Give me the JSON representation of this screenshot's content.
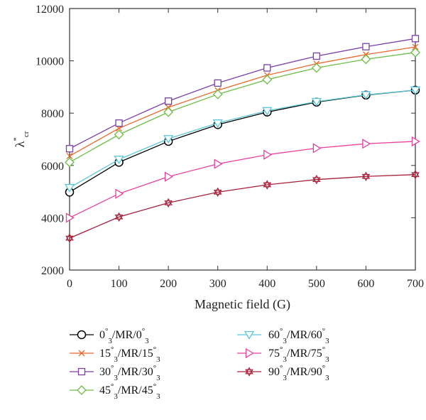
{
  "chart_data": {
    "type": "line",
    "xlabel": "Magnetic field (G)",
    "ylabel": "λ*cr",
    "ylabel_parts": {
      "base": "λ",
      "sup": "*",
      "sub": "cr"
    },
    "xlim": [
      0,
      700
    ],
    "ylim": [
      2000,
      12000
    ],
    "x_ticks": [
      0,
      100,
      200,
      300,
      400,
      500,
      600,
      700
    ],
    "y_ticks": [
      2000,
      4000,
      6000,
      8000,
      10000,
      12000
    ],
    "grid": false,
    "legend_placement": "bottom",
    "x": [
      0,
      100,
      200,
      300,
      400,
      500,
      600,
      700
    ],
    "series": [
      {
        "name": "0°3/MR/0°3",
        "label": {
          "a": "0",
          "b": "/MR/0"
        },
        "marker": "circle",
        "color": "#000000",
        "values": [
          4980,
          6120,
          6920,
          7560,
          8040,
          8420,
          8690,
          8880
        ]
      },
      {
        "name": "15°3/MR/15°3",
        "label": {
          "a": "15",
          "b": "/MR/15"
        },
        "marker": "x",
        "color": "#e8672a",
        "values": [
          6360,
          7420,
          8220,
          8870,
          9450,
          9890,
          10240,
          10530
        ]
      },
      {
        "name": "30°3/MR/30°3",
        "label": {
          "a": "30",
          "b": "/MR/30"
        },
        "marker": "square",
        "color": "#7b3fa5",
        "values": [
          6640,
          7620,
          8460,
          9150,
          9730,
          10180,
          10540,
          10850
        ]
      },
      {
        "name": "45°3/MR/45°3",
        "label": {
          "a": "45",
          "b": "/MR/45"
        },
        "marker": "diamond",
        "color": "#6cbd45",
        "values": [
          6120,
          7180,
          8040,
          8720,
          9280,
          9730,
          10060,
          10320
        ]
      },
      {
        "name": "60°3/MR/60°3",
        "label": {
          "a": "60",
          "b": "/MR/60"
        },
        "marker": "triangle-down",
        "color": "#5bc8d8",
        "values": [
          5150,
          6230,
          7020,
          7620,
          8090,
          8440,
          8700,
          8880
        ]
      },
      {
        "name": "75°3/MR/75°3",
        "label": {
          "a": "75",
          "b": "/MR/75"
        },
        "marker": "triangle-right",
        "color": "#e8409b",
        "values": [
          4000,
          4920,
          5570,
          6060,
          6410,
          6660,
          6830,
          6920
        ]
      },
      {
        "name": "90°3/MR/90°3",
        "label": {
          "a": "90",
          "b": "/MR/90"
        },
        "marker": "hexagram",
        "color": "#a8203a",
        "values": [
          3220,
          4030,
          4570,
          4980,
          5260,
          5460,
          5580,
          5650
        ]
      }
    ]
  }
}
